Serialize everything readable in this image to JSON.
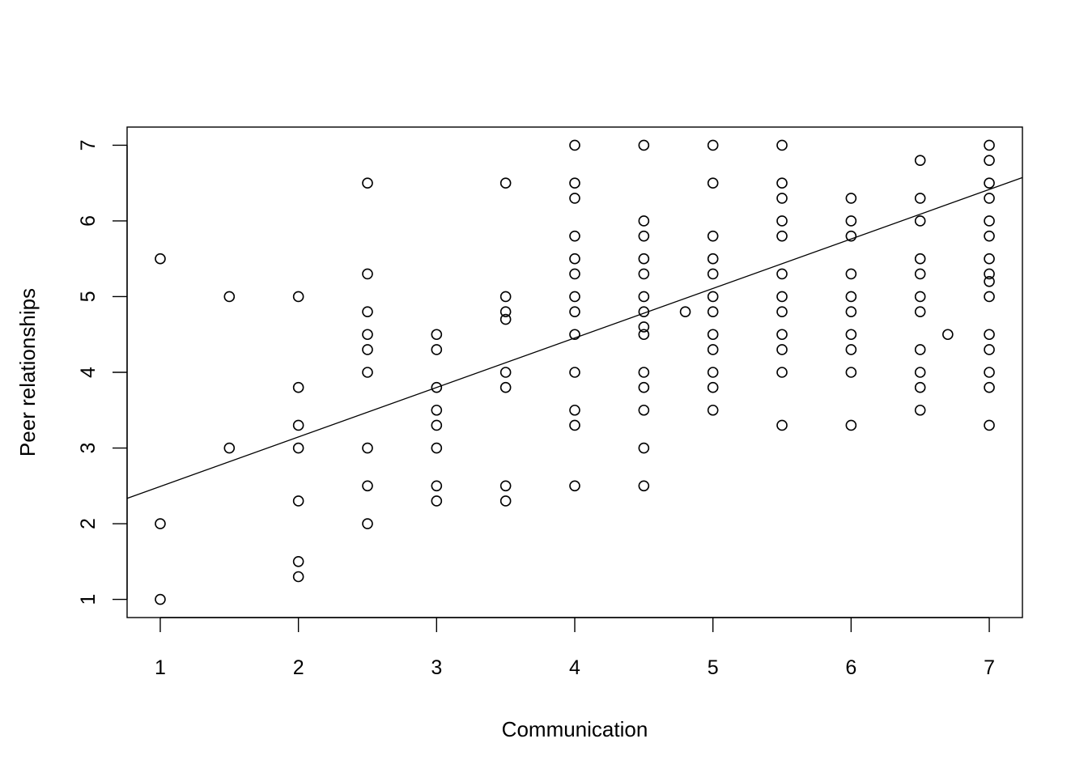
{
  "chart_data": {
    "type": "scatter",
    "title": "",
    "xlabel": "Communication",
    "ylabel": "Peer relationships",
    "xlim": [
      0.76,
      7.24
    ],
    "ylim": [
      0.76,
      7.24
    ],
    "xticks": [
      1,
      2,
      3,
      4,
      5,
      6,
      7
    ],
    "yticks": [
      1,
      2,
      3,
      4,
      5,
      6,
      7
    ],
    "grid": false,
    "marker": "open-circle",
    "colors": {
      "points": "#000000",
      "line": "#000000",
      "axes": "#000000"
    },
    "regression_line": {
      "intercept": 1.838,
      "slope": 0.654
    },
    "points": [
      {
        "x": 1,
        "y": 5.5
      },
      {
        "x": 1,
        "y": 2
      },
      {
        "x": 1,
        "y": 1
      },
      {
        "x": 1.5,
        "y": 5
      },
      {
        "x": 1.5,
        "y": 3
      },
      {
        "x": 2,
        "y": 5
      },
      {
        "x": 2,
        "y": 3.8
      },
      {
        "x": 2,
        "y": 3.3
      },
      {
        "x": 2,
        "y": 3
      },
      {
        "x": 2,
        "y": 2.3
      },
      {
        "x": 2,
        "y": 1.5
      },
      {
        "x": 2,
        "y": 1.3
      },
      {
        "x": 2.5,
        "y": 6.5
      },
      {
        "x": 2.5,
        "y": 5.3
      },
      {
        "x": 2.5,
        "y": 4.8
      },
      {
        "x": 2.5,
        "y": 4.5
      },
      {
        "x": 2.5,
        "y": 4.3
      },
      {
        "x": 2.5,
        "y": 4
      },
      {
        "x": 2.5,
        "y": 3
      },
      {
        "x": 2.5,
        "y": 2.5
      },
      {
        "x": 2.5,
        "y": 2
      },
      {
        "x": 3,
        "y": 4.5
      },
      {
        "x": 3,
        "y": 4.3
      },
      {
        "x": 3,
        "y": 3.8
      },
      {
        "x": 3,
        "y": 3.5
      },
      {
        "x": 3,
        "y": 3.3
      },
      {
        "x": 3,
        "y": 3
      },
      {
        "x": 3,
        "y": 2.5
      },
      {
        "x": 3,
        "y": 2.3
      },
      {
        "x": 3.5,
        "y": 6.5
      },
      {
        "x": 3.5,
        "y": 5
      },
      {
        "x": 3.5,
        "y": 4.8
      },
      {
        "x": 3.5,
        "y": 4.7
      },
      {
        "x": 3.5,
        "y": 4
      },
      {
        "x": 3.5,
        "y": 3.8
      },
      {
        "x": 3.5,
        "y": 2.5
      },
      {
        "x": 3.5,
        "y": 2.3
      },
      {
        "x": 4,
        "y": 7
      },
      {
        "x": 4,
        "y": 6.5
      },
      {
        "x": 4,
        "y": 6.3
      },
      {
        "x": 4,
        "y": 5.8
      },
      {
        "x": 4,
        "y": 5.5
      },
      {
        "x": 4,
        "y": 5.3
      },
      {
        "x": 4,
        "y": 5
      },
      {
        "x": 4,
        "y": 4.8
      },
      {
        "x": 4,
        "y": 4.5
      },
      {
        "x": 4,
        "y": 4
      },
      {
        "x": 4,
        "y": 3.5
      },
      {
        "x": 4,
        "y": 3.3
      },
      {
        "x": 4,
        "y": 2.5
      },
      {
        "x": 4.5,
        "y": 7
      },
      {
        "x": 4.5,
        "y": 6
      },
      {
        "x": 4.5,
        "y": 5.8
      },
      {
        "x": 4.5,
        "y": 5.5
      },
      {
        "x": 4.5,
        "y": 5.3
      },
      {
        "x": 4.5,
        "y": 5
      },
      {
        "x": 4.5,
        "y": 4.8
      },
      {
        "x": 4.5,
        "y": 4.6
      },
      {
        "x": 4.5,
        "y": 4.5
      },
      {
        "x": 4.5,
        "y": 4
      },
      {
        "x": 4.5,
        "y": 3.8
      },
      {
        "x": 4.5,
        "y": 3.5
      },
      {
        "x": 4.5,
        "y": 3
      },
      {
        "x": 4.5,
        "y": 2.5
      },
      {
        "x": 4.8,
        "y": 4.8
      },
      {
        "x": 5,
        "y": 7
      },
      {
        "x": 5,
        "y": 6.5
      },
      {
        "x": 5,
        "y": 5.8
      },
      {
        "x": 5,
        "y": 5.5
      },
      {
        "x": 5,
        "y": 5.3
      },
      {
        "x": 5,
        "y": 5
      },
      {
        "x": 5,
        "y": 4.8
      },
      {
        "x": 5,
        "y": 4.5
      },
      {
        "x": 5,
        "y": 4.3
      },
      {
        "x": 5,
        "y": 4
      },
      {
        "x": 5,
        "y": 3.8
      },
      {
        "x": 5,
        "y": 3.5
      },
      {
        "x": 5.5,
        "y": 7
      },
      {
        "x": 5.5,
        "y": 6.5
      },
      {
        "x": 5.5,
        "y": 6.3
      },
      {
        "x": 5.5,
        "y": 6
      },
      {
        "x": 5.5,
        "y": 5.8
      },
      {
        "x": 5.5,
        "y": 5.3
      },
      {
        "x": 5.5,
        "y": 5
      },
      {
        "x": 5.5,
        "y": 4.8
      },
      {
        "x": 5.5,
        "y": 4.5
      },
      {
        "x": 5.5,
        "y": 4.3
      },
      {
        "x": 5.5,
        "y": 4
      },
      {
        "x": 5.5,
        "y": 3.3
      },
      {
        "x": 6,
        "y": 6.3
      },
      {
        "x": 6,
        "y": 6
      },
      {
        "x": 6,
        "y": 5.8
      },
      {
        "x": 6,
        "y": 5.3
      },
      {
        "x": 6,
        "y": 5
      },
      {
        "x": 6,
        "y": 4.8
      },
      {
        "x": 6,
        "y": 4.5
      },
      {
        "x": 6,
        "y": 4.3
      },
      {
        "x": 6,
        "y": 4
      },
      {
        "x": 6,
        "y": 3.3
      },
      {
        "x": 6.5,
        "y": 6.8
      },
      {
        "x": 6.5,
        "y": 6.3
      },
      {
        "x": 6.5,
        "y": 6
      },
      {
        "x": 6.5,
        "y": 5.5
      },
      {
        "x": 6.5,
        "y": 5.3
      },
      {
        "x": 6.5,
        "y": 5
      },
      {
        "x": 6.5,
        "y": 4.8
      },
      {
        "x": 6.5,
        "y": 4.3
      },
      {
        "x": 6.5,
        "y": 4
      },
      {
        "x": 6.5,
        "y": 3.8
      },
      {
        "x": 6.5,
        "y": 3.5
      },
      {
        "x": 6.7,
        "y": 4.5
      },
      {
        "x": 7,
        "y": 7
      },
      {
        "x": 7,
        "y": 6.8
      },
      {
        "x": 7,
        "y": 6.5
      },
      {
        "x": 7,
        "y": 6.3
      },
      {
        "x": 7,
        "y": 6
      },
      {
        "x": 7,
        "y": 5.8
      },
      {
        "x": 7,
        "y": 5.5
      },
      {
        "x": 7,
        "y": 5.3
      },
      {
        "x": 7,
        "y": 5.2
      },
      {
        "x": 7,
        "y": 5
      },
      {
        "x": 7,
        "y": 4.5
      },
      {
        "x": 7,
        "y": 4.3
      },
      {
        "x": 7,
        "y": 4
      },
      {
        "x": 7,
        "y": 3.8
      },
      {
        "x": 7,
        "y": 3.3
      }
    ]
  }
}
